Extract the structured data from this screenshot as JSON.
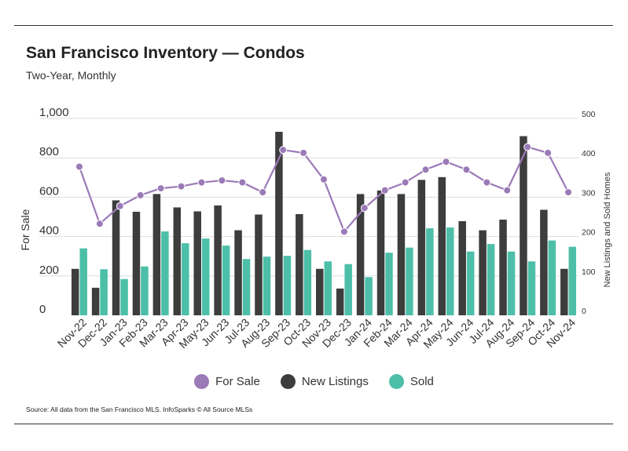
{
  "title": "San Francisco Inventory — Condos",
  "subtitle": "Two-Year, Monthly",
  "source": "Source:  All data from the San Francisco MLS. InfoSparks © All Source MLSs",
  "legend": {
    "for_sale": "For Sale",
    "new_listings": "New Listings",
    "sold": "Sold"
  },
  "colors": {
    "for_sale": "#9b7ab8",
    "new_listings": "#3d3d3d",
    "sold": "#4dbfa8",
    "grid": "#dddddd"
  },
  "chart_data": {
    "type": "bar+line",
    "categories": [
      "Nov-22",
      "Dec-22",
      "Jan-23",
      "Feb-23",
      "Mar-23",
      "Apr-23",
      "May-23",
      "Jun-23",
      "Jul-23",
      "Aug-23",
      "Sep-23",
      "Oct-23",
      "Nov-23",
      "Dec-23",
      "Jan-24",
      "Feb-24",
      "Mar-24",
      "Apr-24",
      "May-24",
      "Jun-24",
      "Jul-24",
      "Aug-24",
      "Sep-24",
      "Oct-24",
      "Nov-24"
    ],
    "ylabel_left": "For Sale",
    "ylabel_right": "New Listings and Sold Homes",
    "ylim_left": [
      0,
      1000
    ],
    "yticks_left": [
      "0",
      "200",
      "400",
      "600",
      "800",
      "1,000"
    ],
    "ylim_right": [
      0,
      500
    ],
    "yticks_right": [
      "0",
      "100",
      "200",
      "300",
      "400",
      "500"
    ],
    "series": [
      {
        "name": "New Listings",
        "axis": "right",
        "kind": "bar",
        "values": [
          118,
          70,
          292,
          263,
          308,
          274,
          264,
          279,
          216,
          256,
          466,
          257,
          118,
          68,
          308,
          317,
          308,
          344,
          351,
          239,
          216,
          243,
          455,
          268,
          118
        ]
      },
      {
        "name": "Sold",
        "axis": "right",
        "kind": "bar",
        "values": [
          170,
          117,
          92,
          124,
          213,
          183,
          195,
          177,
          143,
          149,
          151,
          166,
          137,
          130,
          97,
          159,
          172,
          221,
          223,
          162,
          181,
          162,
          137,
          190,
          174
        ]
      },
      {
        "name": "For Sale",
        "axis": "left",
        "kind": "line",
        "values": [
          755,
          465,
          555,
          610,
          645,
          655,
          675,
          685,
          675,
          625,
          840,
          825,
          690,
          425,
          545,
          635,
          675,
          740,
          780,
          740,
          675,
          635,
          855,
          825,
          625
        ]
      }
    ]
  }
}
